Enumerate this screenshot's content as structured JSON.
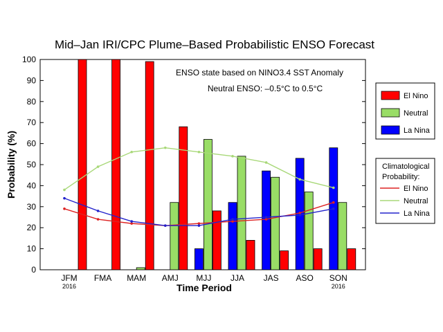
{
  "chart_data": {
    "type": "bar",
    "title": "Mid–Jan IRI/CPC Plume–Based Probabilistic ENSO Forecast",
    "xlabel": "Time Period",
    "ylabel": "Probability (%)",
    "ylim": [
      0,
      100
    ],
    "yticks": [
      0,
      10,
      20,
      30,
      40,
      50,
      60,
      70,
      80,
      90,
      100
    ],
    "categories": [
      "JFM",
      "FMA",
      "MAM",
      "AMJ",
      "MJJ",
      "JJA",
      "JAS",
      "ASO",
      "SON"
    ],
    "category_sublabels": [
      "2016",
      "",
      "",
      "",
      "",
      "",
      "",
      "",
      "2016"
    ],
    "annotations": [
      "ENSO state based on NINO3.4 SST Anomaly",
      "Neutral ENSO: –0.5°C to 0.5°C"
    ],
    "series": [
      {
        "name": "La Nina",
        "color": "#0000ff",
        "values": [
          0,
          0,
          0,
          0,
          10,
          32,
          47,
          53,
          58
        ]
      },
      {
        "name": "Neutral",
        "color": "#99dd66",
        "values": [
          0,
          0,
          1,
          32,
          62,
          54,
          44,
          37,
          32
        ]
      },
      {
        "name": "El Nino",
        "color": "#ff0000",
        "values": [
          100,
          100,
          99,
          68,
          28,
          14,
          9,
          10,
          10
        ]
      }
    ],
    "climatology": {
      "title": "Climatological Probability:",
      "lines": [
        {
          "name": "El Nino",
          "color": "#dd2222",
          "values": [
            29,
            24,
            22,
            21,
            22,
            23,
            24,
            27,
            32
          ]
        },
        {
          "name": "Neutral",
          "color": "#a8d878",
          "values": [
            38,
            49,
            56,
            58,
            56,
            54,
            51,
            43,
            39
          ]
        },
        {
          "name": "La Nina",
          "color": "#2222cc",
          "values": [
            34,
            28,
            23,
            21,
            21,
            24,
            25,
            26,
            29
          ]
        }
      ]
    },
    "legend_position": "right",
    "grid": false
  }
}
